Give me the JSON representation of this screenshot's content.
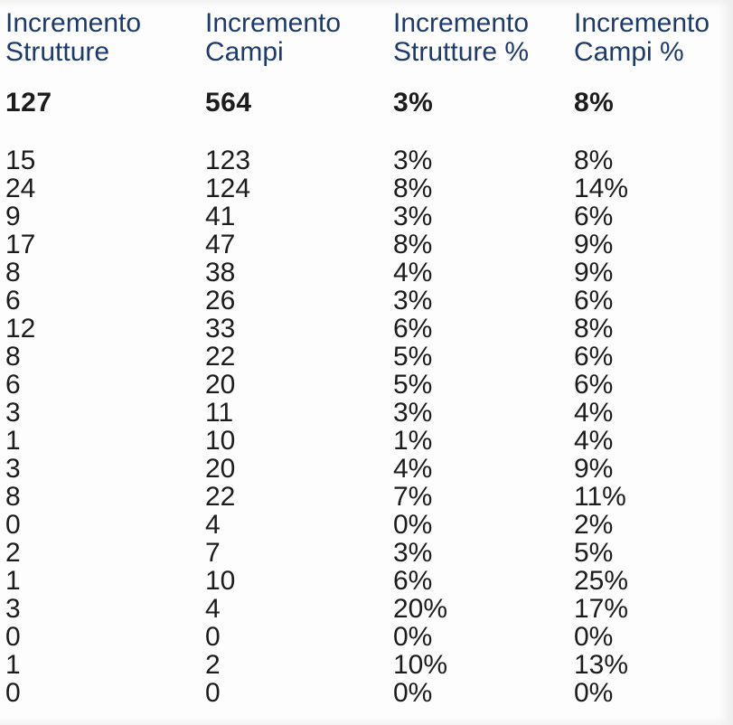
{
  "colors": {
    "header_text": "#1e3a6d",
    "body_text": "#1c1c1c",
    "background": "#fdfdfd"
  },
  "table": {
    "columns": [
      {
        "label": "Incremento Strutture"
      },
      {
        "label": "Incremento Campi"
      },
      {
        "label": "Incremento Strutture %"
      },
      {
        "label": "Incremento Campi %"
      }
    ],
    "totals": [
      "127",
      "564",
      "3%",
      "8%"
    ],
    "rows": [
      [
        "15",
        "123",
        "3%",
        "8%"
      ],
      [
        "24",
        "124",
        "8%",
        "14%"
      ],
      [
        "9",
        "41",
        "3%",
        "6%"
      ],
      [
        "17",
        "47",
        "8%",
        "9%"
      ],
      [
        "8",
        "38",
        "4%",
        "9%"
      ],
      [
        "6",
        "26",
        "3%",
        "6%"
      ],
      [
        "12",
        "33",
        "6%",
        "8%"
      ],
      [
        "8",
        "22",
        "5%",
        "6%"
      ],
      [
        "6",
        "20",
        "5%",
        "6%"
      ],
      [
        "3",
        "11",
        "3%",
        "4%"
      ],
      [
        "1",
        "10",
        "1%",
        "4%"
      ],
      [
        "3",
        "20",
        "4%",
        "9%"
      ],
      [
        "8",
        "22",
        "7%",
        "11%"
      ],
      [
        "0",
        "4",
        "0%",
        "2%"
      ],
      [
        "2",
        "7",
        "3%",
        "5%"
      ],
      [
        "1",
        "10",
        "6%",
        "25%"
      ],
      [
        "3",
        "4",
        "20%",
        "17%"
      ],
      [
        "0",
        "0",
        "0%",
        "0%"
      ],
      [
        "1",
        "2",
        "10%",
        "13%"
      ],
      [
        "0",
        "0",
        "0%",
        "0%"
      ]
    ]
  }
}
